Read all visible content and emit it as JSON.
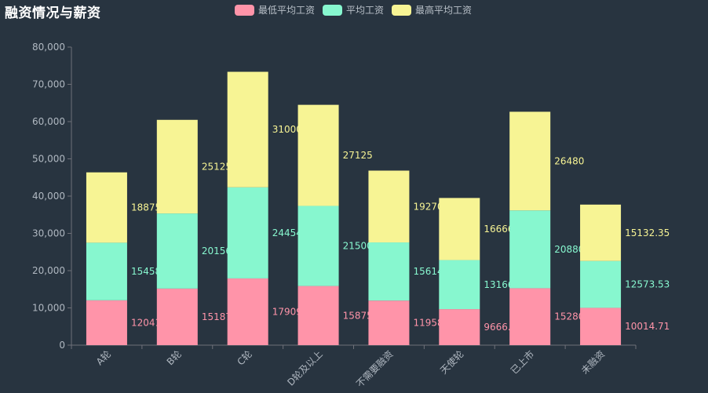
{
  "title": "融资情况与薪资",
  "chart_data": {
    "type": "bar",
    "stacked": true,
    "categories": [
      "A轮",
      "B轮",
      "C轮",
      "D轮及以上",
      "不需要融资",
      "天使轮",
      "已上市",
      "未融资"
    ],
    "series": [
      {
        "name": "最低平均工资",
        "color": "#ff94a9",
        "values": [
          12041,
          15187,
          17909,
          15875,
          11958,
          9666.67,
          15280,
          10014.71
        ],
        "labels": [
          "12041",
          "15187",
          "17909",
          "15875",
          "11958",
          "9666.67",
          "15280",
          "10014.71"
        ]
      },
      {
        "name": "平均工资",
        "color": "#87f7cf",
        "values": [
          15458,
          20156,
          24454,
          21500,
          15614,
          13166.67,
          20880,
          12573.53
        ],
        "labels": [
          "15458",
          "20156",
          "24454",
          "21500",
          "15614",
          "13166.67",
          "20880",
          "12573.53"
        ]
      },
      {
        "name": "最高平均工资",
        "color": "#f7f494",
        "values": [
          18875,
          25125,
          31000,
          27125,
          19270,
          16666.67,
          26480,
          15132.35
        ],
        "labels": [
          "18875",
          "25125",
          "31000",
          "27125",
          "19270",
          "16666.67",
          "26480",
          "15132.35"
        ]
      }
    ],
    "ylim": [
      0,
      80000
    ],
    "yticks": [
      0,
      10000,
      20000,
      30000,
      40000,
      50000,
      60000,
      70000,
      80000
    ],
    "ytick_labels": [
      "0",
      "10,000",
      "20,000",
      "30,000",
      "40,000",
      "50,000",
      "60,000",
      "70,000",
      "80,000"
    ],
    "grid": false,
    "legend": "top-center",
    "xlabel": "",
    "ylabel": ""
  }
}
